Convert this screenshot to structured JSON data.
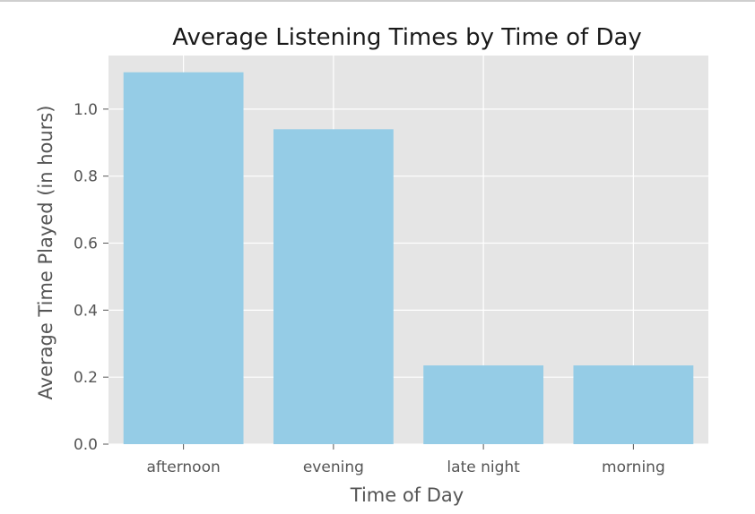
{
  "chart_data": {
    "type": "bar",
    "title": "Average Listening Times by Time of Day",
    "xlabel": "Time of Day",
    "ylabel": "Average Time Played (in hours)",
    "categories": [
      "afternoon",
      "evening",
      "late night",
      "morning"
    ],
    "values": [
      1.11,
      0.94,
      0.235,
      0.235
    ],
    "ylim": [
      0,
      1.16
    ],
    "yticks": [
      "0.0",
      "0.2",
      "0.4",
      "0.6",
      "0.8",
      "1.0"
    ],
    "grid": true,
    "colors": {
      "bar": "#95cce6",
      "plot_background": "#e5e5e5",
      "grid": "#ffffff"
    }
  }
}
